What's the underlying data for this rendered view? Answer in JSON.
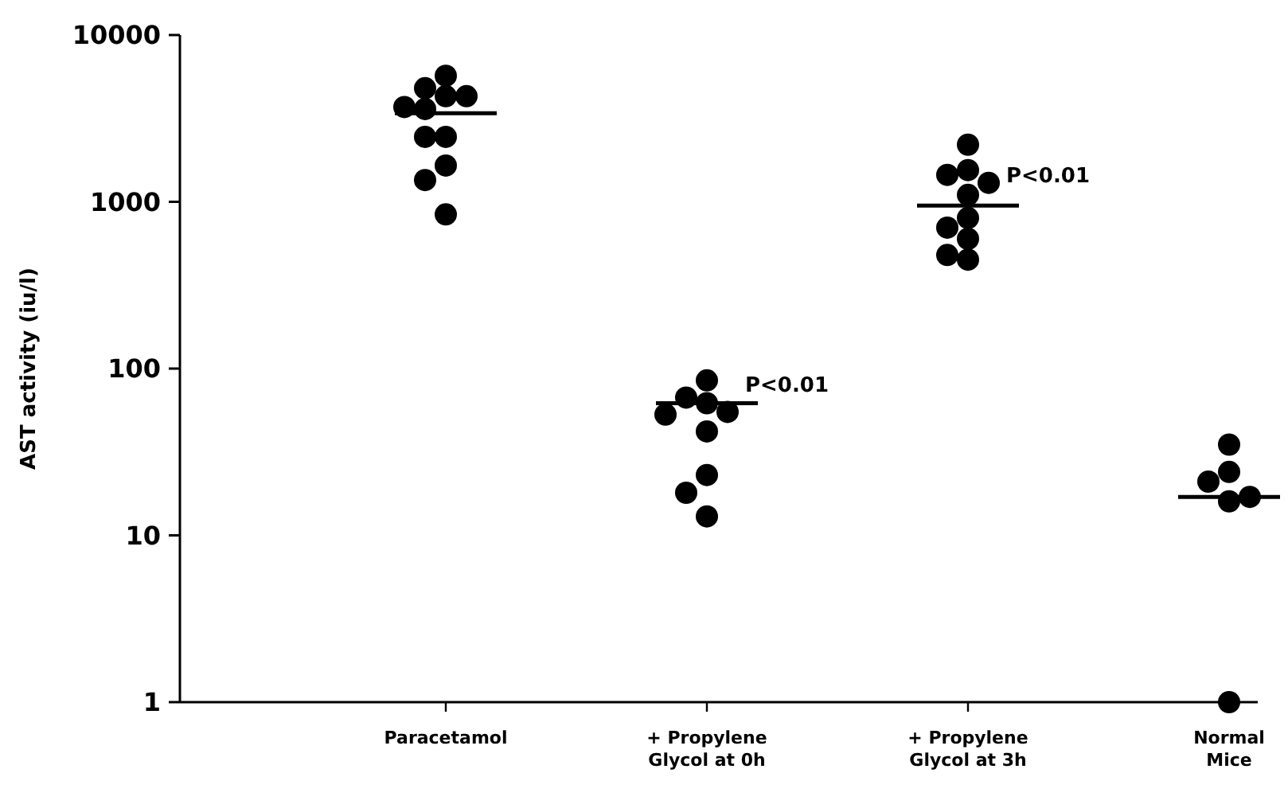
{
  "chart_data": {
    "type": "scatter",
    "ylabel": "AST activity (iu/l)",
    "categories": [
      "Paracetamol",
      "+ Propylene\nGlycol at 0h",
      "+ Propylene\nGlycol at 3h",
      "Normal\nMice"
    ],
    "log": true,
    "ylim": [
      1,
      10000
    ],
    "yticks": [
      1,
      10,
      100,
      1000,
      10000
    ],
    "grid": false,
    "marker": "circle",
    "series": [
      {
        "color": "#000000",
        "x": [
          "Paracetamol",
          "Paracetamol",
          "Paracetamol",
          "Paracetamol",
          "Paracetamol",
          "Paracetamol",
          "Paracetamol",
          "Paracetamol",
          "Paracetamol",
          "Paracetamol",
          "Paracetamol",
          "+ Propylene\nGlycol at 0h",
          "+ Propylene\nGlycol at 0h",
          "+ Propylene\nGlycol at 0h",
          "+ Propylene\nGlycol at 0h",
          "+ Propylene\nGlycol at 0h",
          "+ Propylene\nGlycol at 0h",
          "+ Propylene\nGlycol at 0h",
          "+ Propylene\nGlycol at 0h",
          "+ Propylene\nGlycol at 0h",
          "+ Propylene\nGlycol at 3h",
          "+ Propylene\nGlycol at 3h",
          "+ Propylene\nGlycol at 3h",
          "+ Propylene\nGlycol at 3h",
          "+ Propylene\nGlycol at 3h",
          "+ Propylene\nGlycol at 3h",
          "+ Propylene\nGlycol at 3h",
          "+ Propylene\nGlycol at 3h",
          "+ Propylene\nGlycol at 3h",
          "+ Propylene\nGlycol at 3h",
          "Normal\nMice",
          "Normal\nMice",
          "Normal\nMice",
          "Normal\nMice",
          "Normal\nMice",
          "Normal\nMice"
        ],
        "values": [
          5700,
          4800,
          4300,
          4300,
          3700,
          3600,
          2450,
          2450,
          1650,
          1350,
          840,
          85,
          67,
          62,
          55,
          53,
          42,
          23,
          18,
          13,
          2200,
          1550,
          1450,
          1300,
          1100,
          800,
          700,
          600,
          480,
          450,
          35,
          24,
          21,
          16,
          17,
          1
        ]
      },
      {
        "type": "box",
        "color": "#000000",
        "boxes": [
          {
            "low": 3400,
            "q1": 3400,
            "median": 3400,
            "q3": 3400,
            "high": 3400
          },
          {
            "low": 62,
            "q1": 62,
            "median": 62,
            "q3": 62,
            "high": 62
          },
          {
            "low": 950,
            "q1": 950,
            "median": 950,
            "q3": 950,
            "high": 950
          },
          {
            "low": 17,
            "q1": 17,
            "median": 17,
            "q3": 17,
            "high": 17
          }
        ]
      }
    ],
    "annotations": [
      {
        "text": "P<0.01",
        "x": "+ Propylene\nGlycol at 0h",
        "y": 80
      },
      {
        "text": "P<0.01",
        "x": "+ Propylene\nGlycol at 3h",
        "y": 1450
      }
    ]
  }
}
